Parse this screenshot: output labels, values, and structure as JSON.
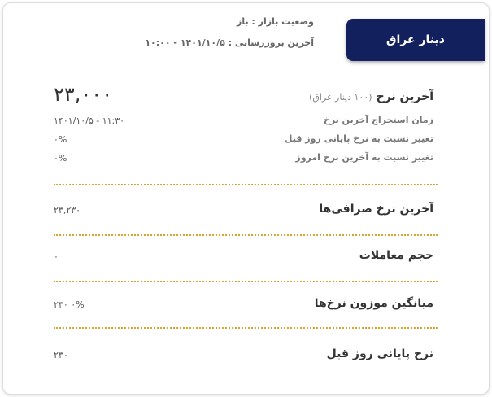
{
  "header": {
    "title": "دینار عراق",
    "market_status": "وضعیت بازار : باز",
    "last_update": "آخرین بروزرسانی : ۱۴۰۱/۱۰/۵ - ۱۰:۰۰"
  },
  "main": {
    "last_rate_label": "آخرین نرخ",
    "last_rate_unit": "(۱۰۰ دینار عراق)",
    "last_rate_value": "۲۳,۰۰۰",
    "extract_time_label": "زمان استخراج آخرین نرخ",
    "extract_time_value": "۱۴۰۱/۱۰/۵ - ۱۱:۳۰",
    "change_prev_label": "تغییر نسبت به نرخ پایانی روز قبل",
    "change_prev_value": "۰%",
    "change_today_label": "تغییر نسبت به آخرین نرخ امروز",
    "change_today_value": "۰%"
  },
  "rows": [
    {
      "label": "آخرین نرخ صرافی‌ها",
      "value": "۲۳,۲۳۰"
    },
    {
      "label": "حجم معاملات",
      "value": "۰"
    },
    {
      "label": "میانگین موزون نرخ‌ها",
      "value": "۲۳۰ ۰%"
    },
    {
      "label": "نرخ پایانی روز قبل",
      "value": "۲۳۰"
    }
  ],
  "colors": {
    "tab": "#13205e",
    "divider": "#d9a530"
  }
}
